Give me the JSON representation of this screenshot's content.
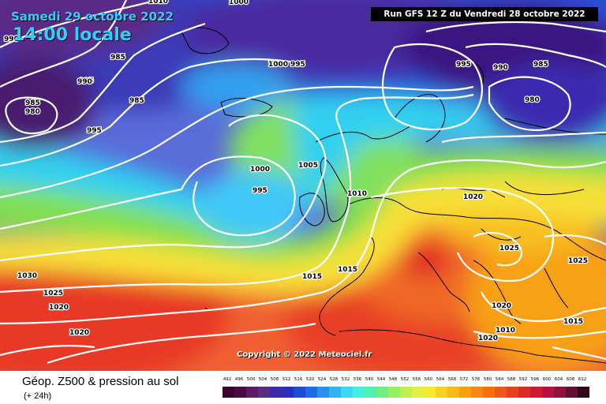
{
  "header": {
    "date": "Samedi 29 octobre 2022",
    "time": "14:00 locale",
    "run": "Run GFS 12 Z du Vendredi 28 octobre 2022"
  },
  "copyright": "Copyright © 2022 Meteociel.fr",
  "footer": {
    "title": "Géop. Z500 & pression au sol",
    "subtitle": "(+ 24h)"
  },
  "legend": {
    "ticks": [
      "492",
      "496",
      "500",
      "504",
      "508",
      "512",
      "516",
      "520",
      "524",
      "528",
      "532",
      "536",
      "540",
      "544",
      "548",
      "552",
      "556",
      "560",
      "564",
      "568",
      "572",
      "576",
      "580",
      "584",
      "588",
      "592",
      "596",
      "600",
      "604",
      "608",
      "612"
    ],
    "colors": [
      "#3a0030",
      "#4b0a46",
      "#5c1a62",
      "#5a2a86",
      "#3d2aa6",
      "#2a2ec0",
      "#1f4ad8",
      "#1f6ae8",
      "#2a90f0",
      "#30b4f4",
      "#3ad8f4",
      "#40f0e0",
      "#50f0b0",
      "#70f080",
      "#98f060",
      "#c0f050",
      "#e0f040",
      "#f8e830",
      "#f8d020",
      "#f8b818",
      "#f8a010",
      "#f88810",
      "#f87010",
      "#f05818",
      "#e84020",
      "#e02828",
      "#d01830",
      "#b81040",
      "#901040",
      "#601030",
      "#300818"
    ]
  },
  "isobars": [
    "990",
    "1010",
    "985",
    "995",
    "1000",
    "1000",
    "985",
    "990",
    "980",
    "985",
    "995",
    "1000",
    "1005",
    "995",
    "1010",
    "1020",
    "995",
    "1025",
    "1030",
    "1025",
    "1020",
    "1020",
    "1015",
    "1015",
    "1025",
    "1020",
    "1015",
    "1020",
    "1010",
    "980",
    "985",
    "990",
    "995"
  ]
}
